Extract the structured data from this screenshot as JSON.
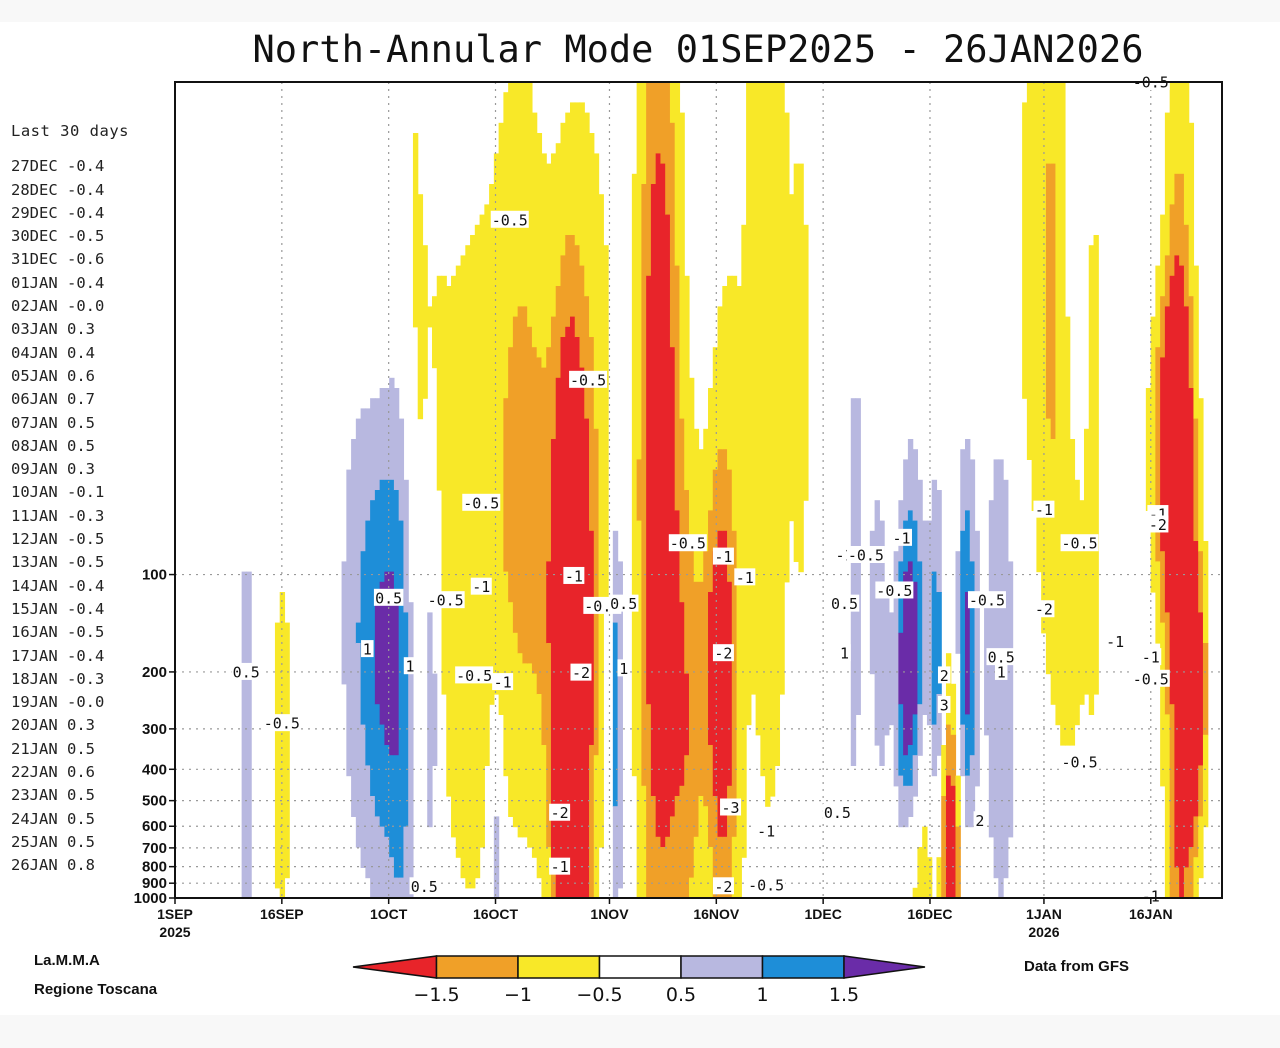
{
  "chart_data": {
    "type": "heatmap",
    "title": "North-Annular Mode 01SEP2025 - 26JAN2026",
    "x_axis": {
      "ticks": [
        {
          "label": "1SEP",
          "sublabel": "2025",
          "date": "2025-09-01"
        },
        {
          "label": "16SEP",
          "sublabel": "",
          "date": "2025-09-16"
        },
        {
          "label": "1OCT",
          "sublabel": "",
          "date": "2025-10-01"
        },
        {
          "label": "16OCT",
          "sublabel": "",
          "date": "2025-10-16"
        },
        {
          "label": "1NOV",
          "sublabel": "",
          "date": "2025-11-01"
        },
        {
          "label": "16NOV",
          "sublabel": "",
          "date": "2025-11-16"
        },
        {
          "label": "1DEC",
          "sublabel": "",
          "date": "2025-12-01"
        },
        {
          "label": "16DEC",
          "sublabel": "",
          "date": "2025-12-16"
        },
        {
          "label": "1JAN",
          "sublabel": "2026",
          "date": "2026-01-01"
        },
        {
          "label": "16JAN",
          "sublabel": "",
          "date": "2026-01-16"
        }
      ],
      "range": [
        "2025-09-01",
        "2026-01-26"
      ]
    },
    "y_axis": {
      "scale": "log",
      "reversed": true,
      "unit": "hPa",
      "ticks": [
        100,
        200,
        300,
        400,
        500,
        600,
        700,
        800,
        900,
        1000
      ]
    },
    "grid": true,
    "colorbar": {
      "levels": [
        "−1.5",
        "−1",
        "−0.5",
        "0.5",
        "1",
        "1.5"
      ],
      "colors": [
        "#e8242a",
        "#f0a028",
        "#f8e828",
        "#ffffff",
        "#b8b8e0",
        "#1e8ed8",
        "#6a2ca8"
      ]
    },
    "contour_labels": [
      {
        "t": "-0.5",
        "date": "2025-10-18",
        "p": 8
      },
      {
        "t": "-0.5",
        "date": "2025-10-29",
        "p": 25
      },
      {
        "t": "-0.5",
        "date": "2025-10-14",
        "p": 60
      },
      {
        "t": "-0.5",
        "date": "2025-11-12",
        "p": 80
      },
      {
        "t": "-1",
        "date": "2025-11-17",
        "p": 88
      },
      {
        "t": "-1",
        "date": "2025-11-20",
        "p": 102
      },
      {
        "t": "-1",
        "date": "2025-10-27",
        "p": 101
      },
      {
        "t": "-1",
        "date": "2025-12-04",
        "p": 87
      },
      {
        "t": "-0.5",
        "date": "2025-12-07",
        "p": 87
      },
      {
        "t": "-1",
        "date": "2025-12-12",
        "p": 77
      },
      {
        "t": "-0.5",
        "date": "2025-12-11",
        "p": 112
      },
      {
        "t": "0.5",
        "date": "2025-10-01",
        "p": 118
      },
      {
        "t": "-0.5",
        "date": "2025-10-09",
        "p": 120
      },
      {
        "t": "-1",
        "date": "2025-10-14",
        "p": 109
      },
      {
        "t": "-0.5",
        "date": "2025-10-31",
        "p": 125
      },
      {
        "t": "0.5",
        "date": "2025-11-03",
        "p": 123
      },
      {
        "t": "0.5",
        "date": "2025-12-04",
        "p": 123
      },
      {
        "t": "-0.5",
        "date": "2025-12-24",
        "p": 120
      },
      {
        "t": "-1",
        "date": "2026-01-01",
        "p": 63
      },
      {
        "t": "-1",
        "date": "2026-01-17",
        "p": 65
      },
      {
        "t": "-0.5",
        "date": "2026-01-16",
        "p": 3
      },
      {
        "t": "-2",
        "date": "2026-01-17",
        "p": 70
      },
      {
        "t": "-0.5",
        "date": "2026-01-06",
        "p": 80
      },
      {
        "t": "-2",
        "date": "2026-01-01",
        "p": 128
      },
      {
        "t": "-1",
        "date": "2026-01-11",
        "p": 161
      },
      {
        "t": "-1",
        "date": "2026-01-16",
        "p": 180
      },
      {
        "t": "-0.5",
        "date": "2026-01-16",
        "p": 210
      },
      {
        "t": "0.5",
        "date": "2025-12-26",
        "p": 180
      },
      {
        "t": "1",
        "date": "2025-12-26",
        "p": 200
      },
      {
        "t": "0.5",
        "date": "2025-09-11",
        "p": 200
      },
      {
        "t": "-0.5",
        "date": "2025-09-16",
        "p": 288
      },
      {
        "t": "1",
        "date": "2025-09-28",
        "p": 170
      },
      {
        "t": "1",
        "date": "2025-10-04",
        "p": 192
      },
      {
        "t": "-0.5",
        "date": "2025-10-13",
        "p": 205
      },
      {
        "t": "-1",
        "date": "2025-10-17",
        "p": 215
      },
      {
        "t": "-2",
        "date": "2025-10-28",
        "p": 201
      },
      {
        "t": "1",
        "date": "2025-11-03",
        "p": 195
      },
      {
        "t": "-2",
        "date": "2025-11-17",
        "p": 175
      },
      {
        "t": "1",
        "date": "2025-12-04",
        "p": 175
      },
      {
        "t": "2",
        "date": "2025-12-18",
        "p": 205
      },
      {
        "t": "3",
        "date": "2025-12-18",
        "p": 253
      },
      {
        "t": "-0.5",
        "date": "2026-01-06",
        "p": 380
      },
      {
        "t": "-2",
        "date": "2025-10-25",
        "p": 545
      },
      {
        "t": "-3",
        "date": "2025-11-18",
        "p": 525
      },
      {
        "t": "0.5",
        "date": "2025-12-03",
        "p": 545
      },
      {
        "t": "2",
        "date": "2025-12-23",
        "p": 575
      },
      {
        "t": "-1",
        "date": "2025-11-23",
        "p": 620
      },
      {
        "t": "-1",
        "date": "2025-10-25",
        "p": 800
      },
      {
        "t": "0.5",
        "date": "2025-10-06",
        "p": 920
      },
      {
        "t": "-2",
        "date": "2025-11-17",
        "p": 920
      },
      {
        "t": "-0.5",
        "date": "2025-11-23",
        "p": 910
      },
      {
        "t": "-1",
        "date": "2026-01-16",
        "p": 985
      }
    ]
  },
  "side_panel": {
    "title": "Last 30 days",
    "rows": [
      {
        "date": "27DEC",
        "value": "-0.4"
      },
      {
        "date": "28DEC",
        "value": "-0.4"
      },
      {
        "date": "29DEC",
        "value": "-0.4"
      },
      {
        "date": "30DEC",
        "value": "-0.5"
      },
      {
        "date": "31DEC",
        "value": "-0.6"
      },
      {
        "date": "01JAN",
        "value": "-0.4"
      },
      {
        "date": "02JAN",
        "value": "-0.0"
      },
      {
        "date": "03JAN",
        "value": "0.3"
      },
      {
        "date": "04JAN",
        "value": "0.4"
      },
      {
        "date": "05JAN",
        "value": "0.6"
      },
      {
        "date": "06JAN",
        "value": "0.7"
      },
      {
        "date": "07JAN",
        "value": "0.5"
      },
      {
        "date": "08JAN",
        "value": "0.5"
      },
      {
        "date": "09JAN",
        "value": "0.3"
      },
      {
        "date": "10JAN",
        "value": "-0.1"
      },
      {
        "date": "11JAN",
        "value": "-0.3"
      },
      {
        "date": "12JAN",
        "value": "-0.5"
      },
      {
        "date": "13JAN",
        "value": "-0.5"
      },
      {
        "date": "14JAN",
        "value": "-0.4"
      },
      {
        "date": "15JAN",
        "value": "-0.4"
      },
      {
        "date": "16JAN",
        "value": "-0.5"
      },
      {
        "date": "17JAN",
        "value": "-0.4"
      },
      {
        "date": "18JAN",
        "value": "-0.3"
      },
      {
        "date": "19JAN",
        "value": "-0.0"
      },
      {
        "date": "20JAN",
        "value": "0.3"
      },
      {
        "date": "21JAN",
        "value": "0.5"
      },
      {
        "date": "22JAN",
        "value": "0.6"
      },
      {
        "date": "23JAN",
        "value": "0.5"
      },
      {
        "date": "24JAN",
        "value": "0.5"
      },
      {
        "date": "25JAN",
        "value": "0.5"
      },
      {
        "date": "26JAN",
        "value": "0.8"
      }
    ]
  },
  "credit": {
    "line1": "La.M.M.A",
    "line2": "Regione Toscana"
  },
  "source": "Data from GFS"
}
